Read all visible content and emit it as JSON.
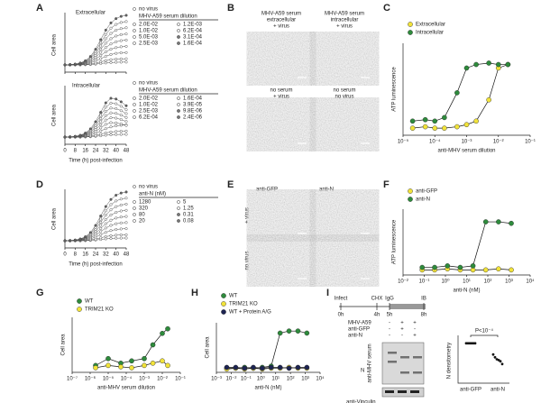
{
  "A": {
    "label": "A",
    "x_label": "Time (h) post-infection",
    "y_label": "Cell area",
    "xlim": [
      0,
      48
    ],
    "xticks": [
      0,
      8,
      16,
      24,
      32,
      40,
      48
    ],
    "top": {
      "title": "Extracellular",
      "legend_none": "no virus",
      "legend_title": "MHV-A59 serum dilution",
      "legend": [
        "2.0E-02",
        "1.0E-02",
        "5.0E-03",
        "2.5E-03",
        "1.2E-03",
        "6.2E-04",
        "3.1E-04",
        "1.6E-04"
      ]
    },
    "bottom": {
      "title": "Intracellular",
      "legend_none": "no virus",
      "legend_title": "MHV-A59 serum dilution",
      "legend": [
        "2.0E-02",
        "1.0E-02",
        "2.5E-03",
        "6.2E-04",
        "1.6E-04",
        "3.9E-05",
        "9.8E-06",
        "2.4E-06"
      ]
    }
  },
  "B": {
    "label": "B",
    "captions": [
      [
        "MHV-A59 serum",
        "extracellular",
        "+ virus"
      ],
      [
        "MHV-A59 serum",
        "intracellular",
        "+ virus"
      ],
      [
        "no serum",
        "+ virus"
      ],
      [
        "no serum",
        "no virus"
      ]
    ]
  },
  "C": {
    "label": "C",
    "x_label": "anti-MHV serum dilution",
    "y_label": "ATP luminescence",
    "ylim": [
      0,
      1.3
    ],
    "xlim": [
      1e-05,
      0.1
    ],
    "xticks": [
      {
        "value": 1e-05,
        "label": "10⁻⁵"
      },
      {
        "value": 0.0001,
        "label": "10⁻⁴"
      },
      {
        "value": 0.001,
        "label": "10⁻³"
      },
      {
        "value": 0.01,
        "label": "10⁻²"
      },
      {
        "value": 0.1,
        "label": "10⁻¹"
      }
    ],
    "series": [
      {
        "name": "Extracellular",
        "color": "#f2e33a",
        "x": [
          2e-05,
          5e-05,
          0.0001,
          0.0002,
          0.0005,
          0.001,
          0.002,
          0.005,
          0.01,
          0.02
        ],
        "values": [
          0.1,
          0.12,
          0.1,
          0.1,
          0.12,
          0.15,
          0.2,
          0.5,
          0.95,
          1.0
        ]
      },
      {
        "name": "Intracellular",
        "color": "#2e8b3c",
        "x": [
          2e-05,
          5e-05,
          0.0001,
          0.0002,
          0.0005,
          0.001,
          0.002,
          0.005,
          0.01,
          0.02
        ],
        "values": [
          0.2,
          0.22,
          0.2,
          0.25,
          0.6,
          0.95,
          1.0,
          1.02,
          1.0,
          1.0
        ]
      }
    ]
  },
  "D": {
    "label": "D",
    "x_label": "Time (h) post-infection",
    "y_label": "Cell area",
    "xlim": [
      0,
      48
    ],
    "xticks": [
      0,
      8,
      16,
      24,
      32,
      40,
      48
    ],
    "legend_none": "no virus",
    "legend_title": "anti-N (nM)",
    "legend": [
      "1280",
      "320",
      "80",
      "20",
      "5",
      "1.25",
      "0.31",
      "0.08"
    ]
  },
  "E": {
    "label": "E",
    "columns": [
      "anti-GFP",
      "anti-N"
    ],
    "rows": [
      "+ virus",
      "no virus"
    ]
  },
  "F": {
    "label": "F",
    "x_label": "anti-N (nM)",
    "y_label": "ATP luminescence",
    "ylim": [
      0,
      1.3
    ],
    "xlim": [
      0.01,
      10000
    ],
    "xticks": [
      {
        "value": 0.01,
        "label": "10⁻²"
      },
      {
        "value": 0.1,
        "label": "10⁻¹"
      },
      {
        "value": 1,
        "label": "10⁰"
      },
      {
        "value": 10,
        "label": "10¹"
      },
      {
        "value": 100,
        "label": "10²"
      },
      {
        "value": 1000,
        "label": "10³"
      },
      {
        "value": 10000,
        "label": "10⁴"
      }
    ],
    "series": [
      {
        "name": "anti-GFP",
        "color": "#f2e33a",
        "x": [
          0.08,
          0.31,
          1.25,
          5,
          20,
          80,
          320,
          1280
        ],
        "values": [
          0.1,
          0.1,
          0.12,
          0.1,
          0.1,
          0.1,
          0.12,
          0.1
        ]
      },
      {
        "name": "anti-N",
        "color": "#2e8b3c",
        "x": [
          0.08,
          0.31,
          1.25,
          5,
          20,
          80,
          320,
          1280
        ],
        "values": [
          0.15,
          0.15,
          0.18,
          0.15,
          0.18,
          1.05,
          1.05,
          1.02
        ]
      }
    ]
  },
  "G": {
    "label": "G",
    "x_label": "anti-MHV serum dilution",
    "y_label": "Cell area",
    "ylim": [
      0,
      1.2
    ],
    "xlim": [
      1e-07,
      0.1
    ],
    "xticks": [
      {
        "value": 1e-07,
        "label": "10⁻⁷"
      },
      {
        "value": 1e-06,
        "label": "10⁻⁶"
      },
      {
        "value": 1e-05,
        "label": "10⁻⁵"
      },
      {
        "value": 0.0001,
        "label": "10⁻⁴"
      },
      {
        "value": 0.001,
        "label": "10⁻³"
      },
      {
        "value": 0.01,
        "label": "10⁻²"
      },
      {
        "value": 0.1,
        "label": "10⁻¹"
      }
    ],
    "series": [
      {
        "name": "WT",
        "color": "#2e8b3c",
        "x": [
          2e-06,
          1e-05,
          5e-05,
          0.0002,
          0.001,
          0.003,
          0.01,
          0.02
        ],
        "values": [
          0.15,
          0.3,
          0.2,
          0.25,
          0.3,
          0.6,
          0.85,
          0.95
        ]
      },
      {
        "name": "TRIM21 KO",
        "color": "#f2e33a",
        "x": [
          2e-06,
          1e-05,
          5e-05,
          0.0002,
          0.001,
          0.003,
          0.01,
          0.02
        ],
        "values": [
          0.1,
          0.15,
          0.12,
          0.1,
          0.15,
          0.2,
          0.25,
          0.15
        ]
      }
    ]
  },
  "H": {
    "label": "H",
    "x_label": "anti-N (nM)",
    "y_label": "Cell area",
    "ylim": [
      0,
      1.2
    ],
    "xlim": [
      0.001,
      10000
    ],
    "xticks": [
      {
        "value": 0.001,
        "label": "10⁻³"
      },
      {
        "value": 0.01,
        "label": "10⁻²"
      },
      {
        "value": 0.1,
        "label": "10⁻¹"
      },
      {
        "value": 1,
        "label": "10⁰"
      },
      {
        "value": 10,
        "label": "10¹"
      },
      {
        "value": 100,
        "label": "10²"
      },
      {
        "value": 1000,
        "label": "10³"
      },
      {
        "value": 10000,
        "label": "10⁴"
      }
    ],
    "series": [
      {
        "name": "WT",
        "color": "#2e8b3c",
        "x": [
          0.005,
          0.02,
          0.08,
          0.31,
          1.25,
          5,
          20,
          80,
          320,
          1280
        ],
        "values": [
          0.1,
          0.1,
          0.12,
          0.1,
          0.12,
          0.15,
          0.95,
          1.0,
          1.0,
          0.95
        ]
      },
      {
        "name": "TRIM21 KO",
        "color": "#f2e33a",
        "x": [
          0.005,
          0.02,
          0.08,
          0.31,
          1.25,
          5,
          20,
          80,
          320,
          1280
        ],
        "values": [
          0.08,
          0.1,
          0.08,
          0.1,
          0.08,
          0.1,
          0.1,
          0.12,
          0.1,
          0.1
        ]
      },
      {
        "name": "WT + Protein A/G",
        "color": "#1d2452",
        "x": [
          0.005,
          0.02,
          0.08,
          0.31,
          1.25,
          5,
          20,
          80,
          320,
          1280
        ],
        "values": [
          0.12,
          0.12,
          0.1,
          0.12,
          0.1,
          0.12,
          0.12,
          0.1,
          0.12,
          0.12
        ]
      }
    ]
  },
  "I": {
    "label": "I",
    "timeline": {
      "events": [
        "Infect",
        "CHX",
        "IgG",
        "IB"
      ],
      "times": [
        "0h",
        "4h",
        "5h",
        "8h"
      ]
    },
    "blot": {
      "rows": [
        {
          "name": "MHV-A59",
          "signs": [
            "-",
            "+",
            "+"
          ]
        },
        {
          "name": "anti-GFP",
          "signs": [
            "-",
            "+",
            "-"
          ]
        },
        {
          "name": "anti-N",
          "signs": [
            "-",
            "-",
            "+"
          ]
        }
      ],
      "probe": "anti-MHV serum",
      "band": "N",
      "loading": "anti-Vinculin"
    },
    "dots": {
      "y_label": "N densitometry",
      "categories": [
        "anti-GFP",
        "anti-N"
      ],
      "p_label": "P<10⁻⁴",
      "ylim": [
        0,
        1.2
      ],
      "values": [
        [
          1.0,
          1.0,
          1.0,
          1.0,
          1.0,
          1.0
        ],
        [
          0.72,
          0.65,
          0.6,
          0.58,
          0.55,
          0.48
        ]
      ]
    }
  }
}
